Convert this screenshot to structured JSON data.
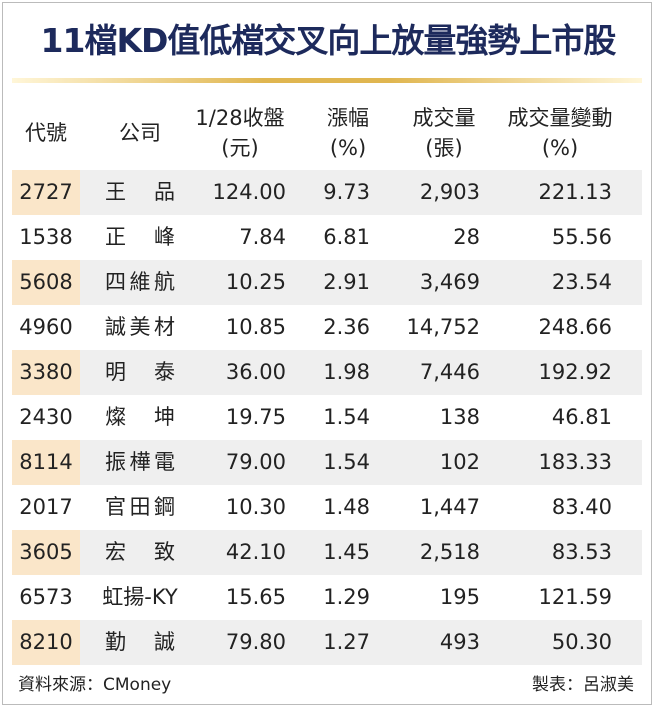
{
  "header": {
    "title": "11檔KD值低檔交叉向上放量強勢上市股"
  },
  "table": {
    "columns": [
      [
        "代號"
      ],
      [
        "公司"
      ],
      [
        "1/28收盤",
        "(元)"
      ],
      [
        "漲幅",
        "(%)"
      ],
      [
        "成交量",
        "(張)"
      ],
      [
        "成交量變動",
        "(%)"
      ]
    ],
    "rows": [
      [
        "2727",
        "王品",
        "124.00",
        "9.73",
        "2,903",
        "221.13"
      ],
      [
        "1538",
        "正峰",
        "7.84",
        "6.81",
        "28",
        "55.56"
      ],
      [
        "5608",
        "四維航",
        "10.25",
        "2.91",
        "3,469",
        "23.54"
      ],
      [
        "4960",
        "誠美材",
        "10.85",
        "2.36",
        "14,752",
        "248.66"
      ],
      [
        "3380",
        "明泰",
        "36.00",
        "1.98",
        "7,446",
        "192.92"
      ],
      [
        "2430",
        "燦坤",
        "19.75",
        "1.54",
        "138",
        "46.81"
      ],
      [
        "8114",
        "振樺電",
        "79.00",
        "1.54",
        "102",
        "183.33"
      ],
      [
        "2017",
        "官田鋼",
        "10.30",
        "1.48",
        "1,447",
        "83.40"
      ],
      [
        "3605",
        "宏致",
        "42.10",
        "1.45",
        "2,518",
        "83.53"
      ],
      [
        "6573",
        "虹揚-KY",
        "15.65",
        "1.29",
        "195",
        "121.59"
      ],
      [
        "8210",
        "勤誠",
        "79.80",
        "1.27",
        "493",
        "50.30"
      ]
    ]
  },
  "footer": {
    "source": "資料來源：CMoney",
    "author": "製表：呂淑美"
  }
}
